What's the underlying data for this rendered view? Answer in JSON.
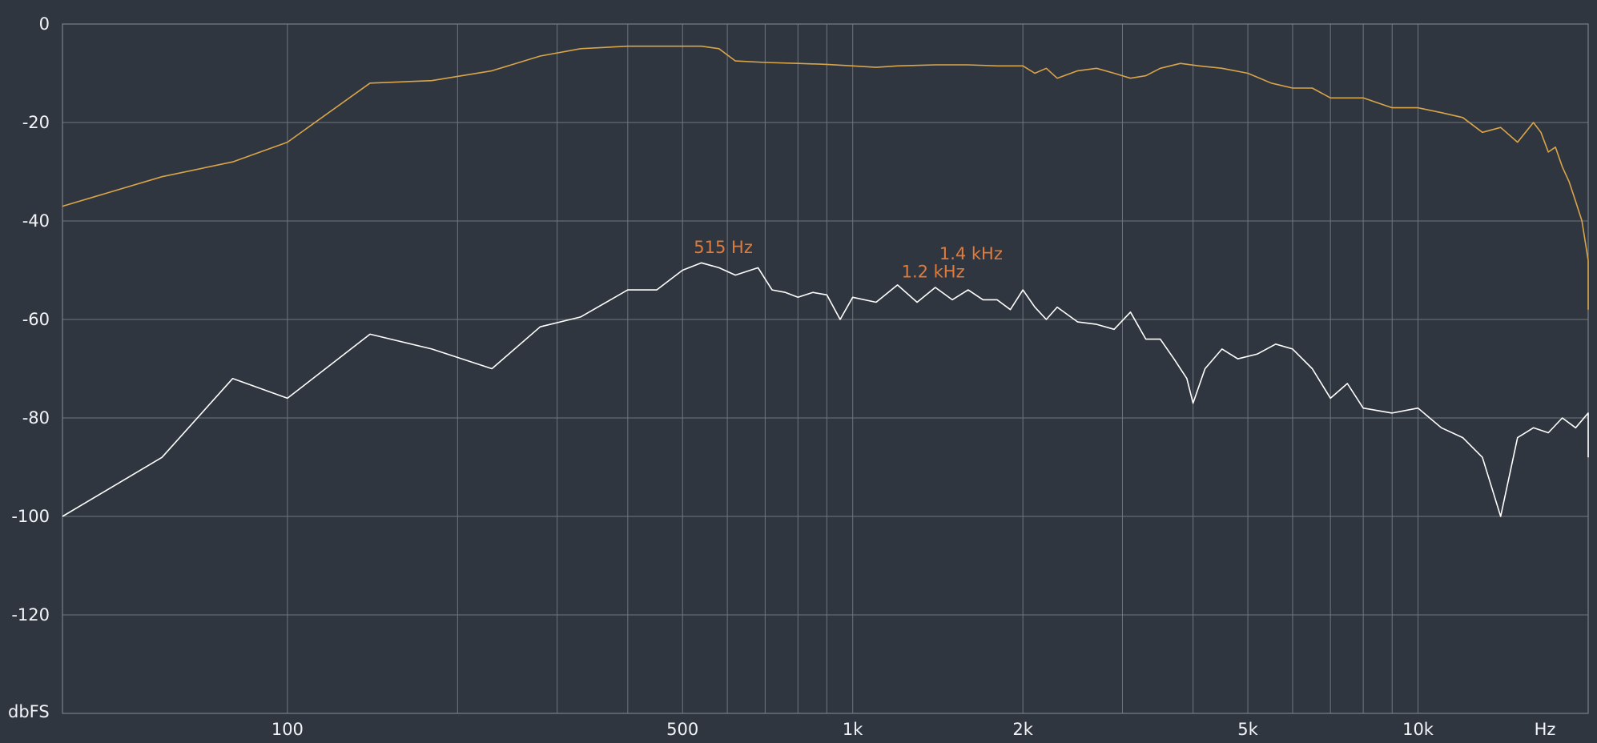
{
  "chart_data": {
    "type": "line",
    "title": "",
    "xlabel": "Hz",
    "ylabel": "dbFS",
    "x_scale": "log",
    "xlim": [
      40,
      20000
    ],
    "ylim": [
      -140,
      0
    ],
    "grid": true,
    "y_ticks": [
      {
        "value": 0,
        "label": "0"
      },
      {
        "value": -20,
        "label": "-20"
      },
      {
        "value": -40,
        "label": "-40"
      },
      {
        "value": -60,
        "label": "-60"
      },
      {
        "value": -80,
        "label": "-80"
      },
      {
        "value": -100,
        "label": "-100"
      },
      {
        "value": -120,
        "label": "-120"
      }
    ],
    "x_ticks": [
      {
        "value": 100,
        "label": "100"
      },
      {
        "value": 500,
        "label": "500"
      },
      {
        "value": 1000,
        "label": "1k"
      },
      {
        "value": 2000,
        "label": "2k"
      },
      {
        "value": 5000,
        "label": "5k"
      },
      {
        "value": 10000,
        "label": "10k"
      }
    ],
    "x_gridlines": [
      100,
      200,
      300,
      400,
      500,
      600,
      700,
      800,
      900,
      1000,
      2000,
      3000,
      4000,
      5000,
      6000,
      7000,
      8000,
      9000,
      10000,
      20000
    ],
    "series": [
      {
        "color": "#d9a54a",
        "x": [
          40,
          60,
          80,
          100,
          140,
          180,
          230,
          280,
          330,
          400,
          500,
          540,
          580,
          620,
          700,
          800,
          900,
          1000,
          1100,
          1200,
          1400,
          1600,
          1800,
          2000,
          2100,
          2200,
          2300,
          2500,
          2700,
          2900,
          3100,
          3300,
          3500,
          3800,
          4100,
          4500,
          5000,
          5500,
          6000,
          6500,
          7000,
          8000,
          9000,
          10000,
          11000,
          12000,
          13000,
          14000,
          15000,
          16000,
          16500,
          17000,
          17500,
          18000,
          18500,
          19000,
          19500,
          20000,
          20500,
          21000,
          22000
        ],
        "y": [
          -37,
          -31,
          -28,
          -24,
          -12,
          -11.5,
          -9.5,
          -6.5,
          -5,
          -4.5,
          -4.5,
          -4.5,
          -5,
          -7.5,
          -7.8,
          -8,
          -8.2,
          -8.5,
          -8.8,
          -8.5,
          -8.3,
          -8.3,
          -8.5,
          -8.5,
          -10,
          -9,
          -11,
          -9.5,
          -9,
          -10,
          -11,
          -10.5,
          -9,
          -8,
          -8.5,
          -9,
          -10,
          -12,
          -13,
          -13,
          -15,
          -15,
          -17,
          -17,
          -18,
          -19,
          -22,
          -21,
          -24,
          -20,
          -22,
          -26,
          -25,
          -29,
          -32,
          -36,
          -40,
          -48,
          -55,
          -53,
          -58
        ]
      },
      {
        "color": "#ffffff",
        "x": [
          40,
          60,
          80,
          100,
          140,
          180,
          230,
          280,
          330,
          400,
          450,
          500,
          540,
          580,
          620,
          680,
          720,
          760,
          800,
          850,
          900,
          950,
          1000,
          1100,
          1200,
          1300,
          1400,
          1500,
          1600,
          1700,
          1800,
          1900,
          2000,
          2100,
          2200,
          2300,
          2500,
          2700,
          2900,
          3100,
          3300,
          3500,
          3700,
          3900,
          4000,
          4200,
          4500,
          4800,
          5200,
          5600,
          6000,
          6500,
          7000,
          7500,
          8000,
          9000,
          10000,
          11000,
          12000,
          13000,
          14000,
          15000,
          16000,
          17000,
          18000,
          19000,
          20000,
          21000,
          22000
        ],
        "y": [
          -100,
          -88,
          -72,
          -76,
          -63,
          -66,
          -70,
          -61.5,
          -59.5,
          -54,
          -54,
          -50,
          -48.5,
          -49.5,
          -51,
          -49.5,
          -54,
          -54.5,
          -55.5,
          -54.5,
          -55,
          -60,
          -55.5,
          -56.5,
          -53,
          -56.5,
          -53.5,
          -56,
          -54,
          -56,
          -56,
          -58,
          -54,
          -57.5,
          -60,
          -57.5,
          -60.5,
          -61,
          -62,
          -58.5,
          -64,
          -64,
          -68,
          -72,
          -77,
          -70,
          -66,
          -68,
          -67,
          -65,
          -66,
          -70,
          -76,
          -73,
          -78,
          -79,
          -78,
          -82,
          -84,
          -88,
          -100,
          -84,
          -82,
          -83,
          -80,
          -82,
          -79,
          -80,
          -88
        ]
      }
    ],
    "annotations": [
      {
        "text": "515 Hz",
        "x": 515,
        "y": -46.5
      },
      {
        "text": "1.2 kHz",
        "x": 1200,
        "y": -51.5
      },
      {
        "text": "1.4 kHz",
        "x": 1400,
        "y": -47.8
      }
    ]
  }
}
